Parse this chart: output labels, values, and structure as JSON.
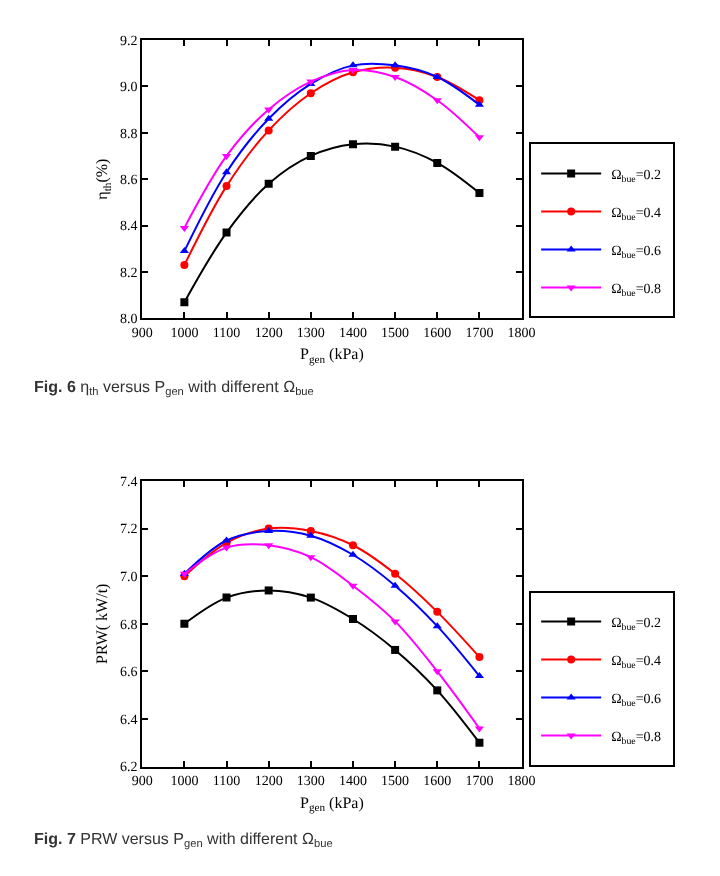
{
  "chart_data": [
    {
      "type": "line",
      "xlabel": "P$_{gen}$ (kPa)",
      "ylabel": "η$_{th}$(%)",
      "x": [
        1000,
        1100,
        1200,
        1300,
        1400,
        1500,
        1600,
        1700
      ],
      "xlim": [
        900,
        1800
      ],
      "xticks": [
        900,
        1000,
        1100,
        1200,
        1300,
        1400,
        1500,
        1600,
        1700,
        1800
      ],
      "ylim": [
        8.0,
        9.2
      ],
      "yticks": [
        {
          "value": 8.0,
          "label": "8.0"
        },
        8.2,
        8.4,
        8.6,
        8.8,
        {
          "value": 9.0,
          "label": "9.0"
        },
        9.2
      ],
      "legend": "bottom right",
      "line_style": "solid",
      "annotations": [
        "Fig. 6 η$_{th}$ versus P$_{gen}$ with different Ω$_{bue}$"
      ],
      "series": [
        {
          "name": "Ω$_{bue}$=0.2",
          "color": "#000000",
          "marker": "square",
          "values": [
            8.07,
            8.37,
            8.58,
            8.7,
            8.75,
            8.74,
            8.67,
            8.54
          ]
        },
        {
          "name": "Ω$_{bue}$=0.4",
          "color": "#ff0000",
          "marker": "circle",
          "values": [
            8.23,
            8.57,
            8.81,
            8.97,
            9.06,
            9.08,
            9.04,
            8.94
          ]
        },
        {
          "name": "Ω$_{bue}$=0.6",
          "color": "#0000ff",
          "marker": "triangle",
          "values": [
            8.29,
            8.63,
            8.86,
            9.01,
            9.09,
            9.09,
            9.04,
            8.92
          ]
        },
        {
          "name": "Ω$_{bue}$=0.8",
          "color": "#ff00ff",
          "marker": "triangle-down",
          "values": [
            8.39,
            8.7,
            8.9,
            9.02,
            9.07,
            9.04,
            8.94,
            8.78
          ]
        }
      ]
    },
    {
      "type": "line",
      "xlabel": "P$_{gen}$ (kPa)",
      "ylabel": "PRW( kW/t)",
      "x": [
        1000,
        1100,
        1200,
        1300,
        1400,
        1500,
        1600,
        1700
      ],
      "xlim": [
        900,
        1800
      ],
      "xticks": [
        900,
        1000,
        1100,
        1200,
        1300,
        1400,
        1500,
        1600,
        1700,
        1800
      ],
      "ylim": [
        6.2,
        7.4
      ],
      "yticks": [
        6.2,
        6.4,
        6.6,
        6.8,
        {
          "value": 7.0,
          "label": "7.0"
        },
        7.2,
        7.4
      ],
      "legend": "bottom right",
      "line_style": "solid",
      "annotations": [
        "Fig. 7 PRW versus P$_{gen}$ with different Ω$_{bue}$"
      ],
      "series": [
        {
          "name": "Ω$_{bue}$=0.2",
          "color": "#000000",
          "marker": "square",
          "values": [
            6.8,
            6.91,
            6.94,
            6.91,
            6.82,
            6.69,
            6.52,
            6.3
          ]
        },
        {
          "name": "Ω$_{bue}$=0.4",
          "color": "#ff0000",
          "marker": "circle",
          "values": [
            7.0,
            7.14,
            7.2,
            7.19,
            7.13,
            7.01,
            6.85,
            6.66
          ]
        },
        {
          "name": "Ω$_{bue}$=0.6",
          "color": "#0000ff",
          "marker": "triangle",
          "values": [
            7.01,
            7.15,
            7.19,
            7.17,
            7.09,
            6.96,
            6.79,
            6.58
          ]
        },
        {
          "name": "Ω$_{bue}$=0.8",
          "color": "#ff00ff",
          "marker": "triangle-down",
          "values": [
            7.01,
            7.12,
            7.13,
            7.08,
            6.96,
            6.81,
            6.6,
            6.36
          ]
        }
      ]
    }
  ]
}
